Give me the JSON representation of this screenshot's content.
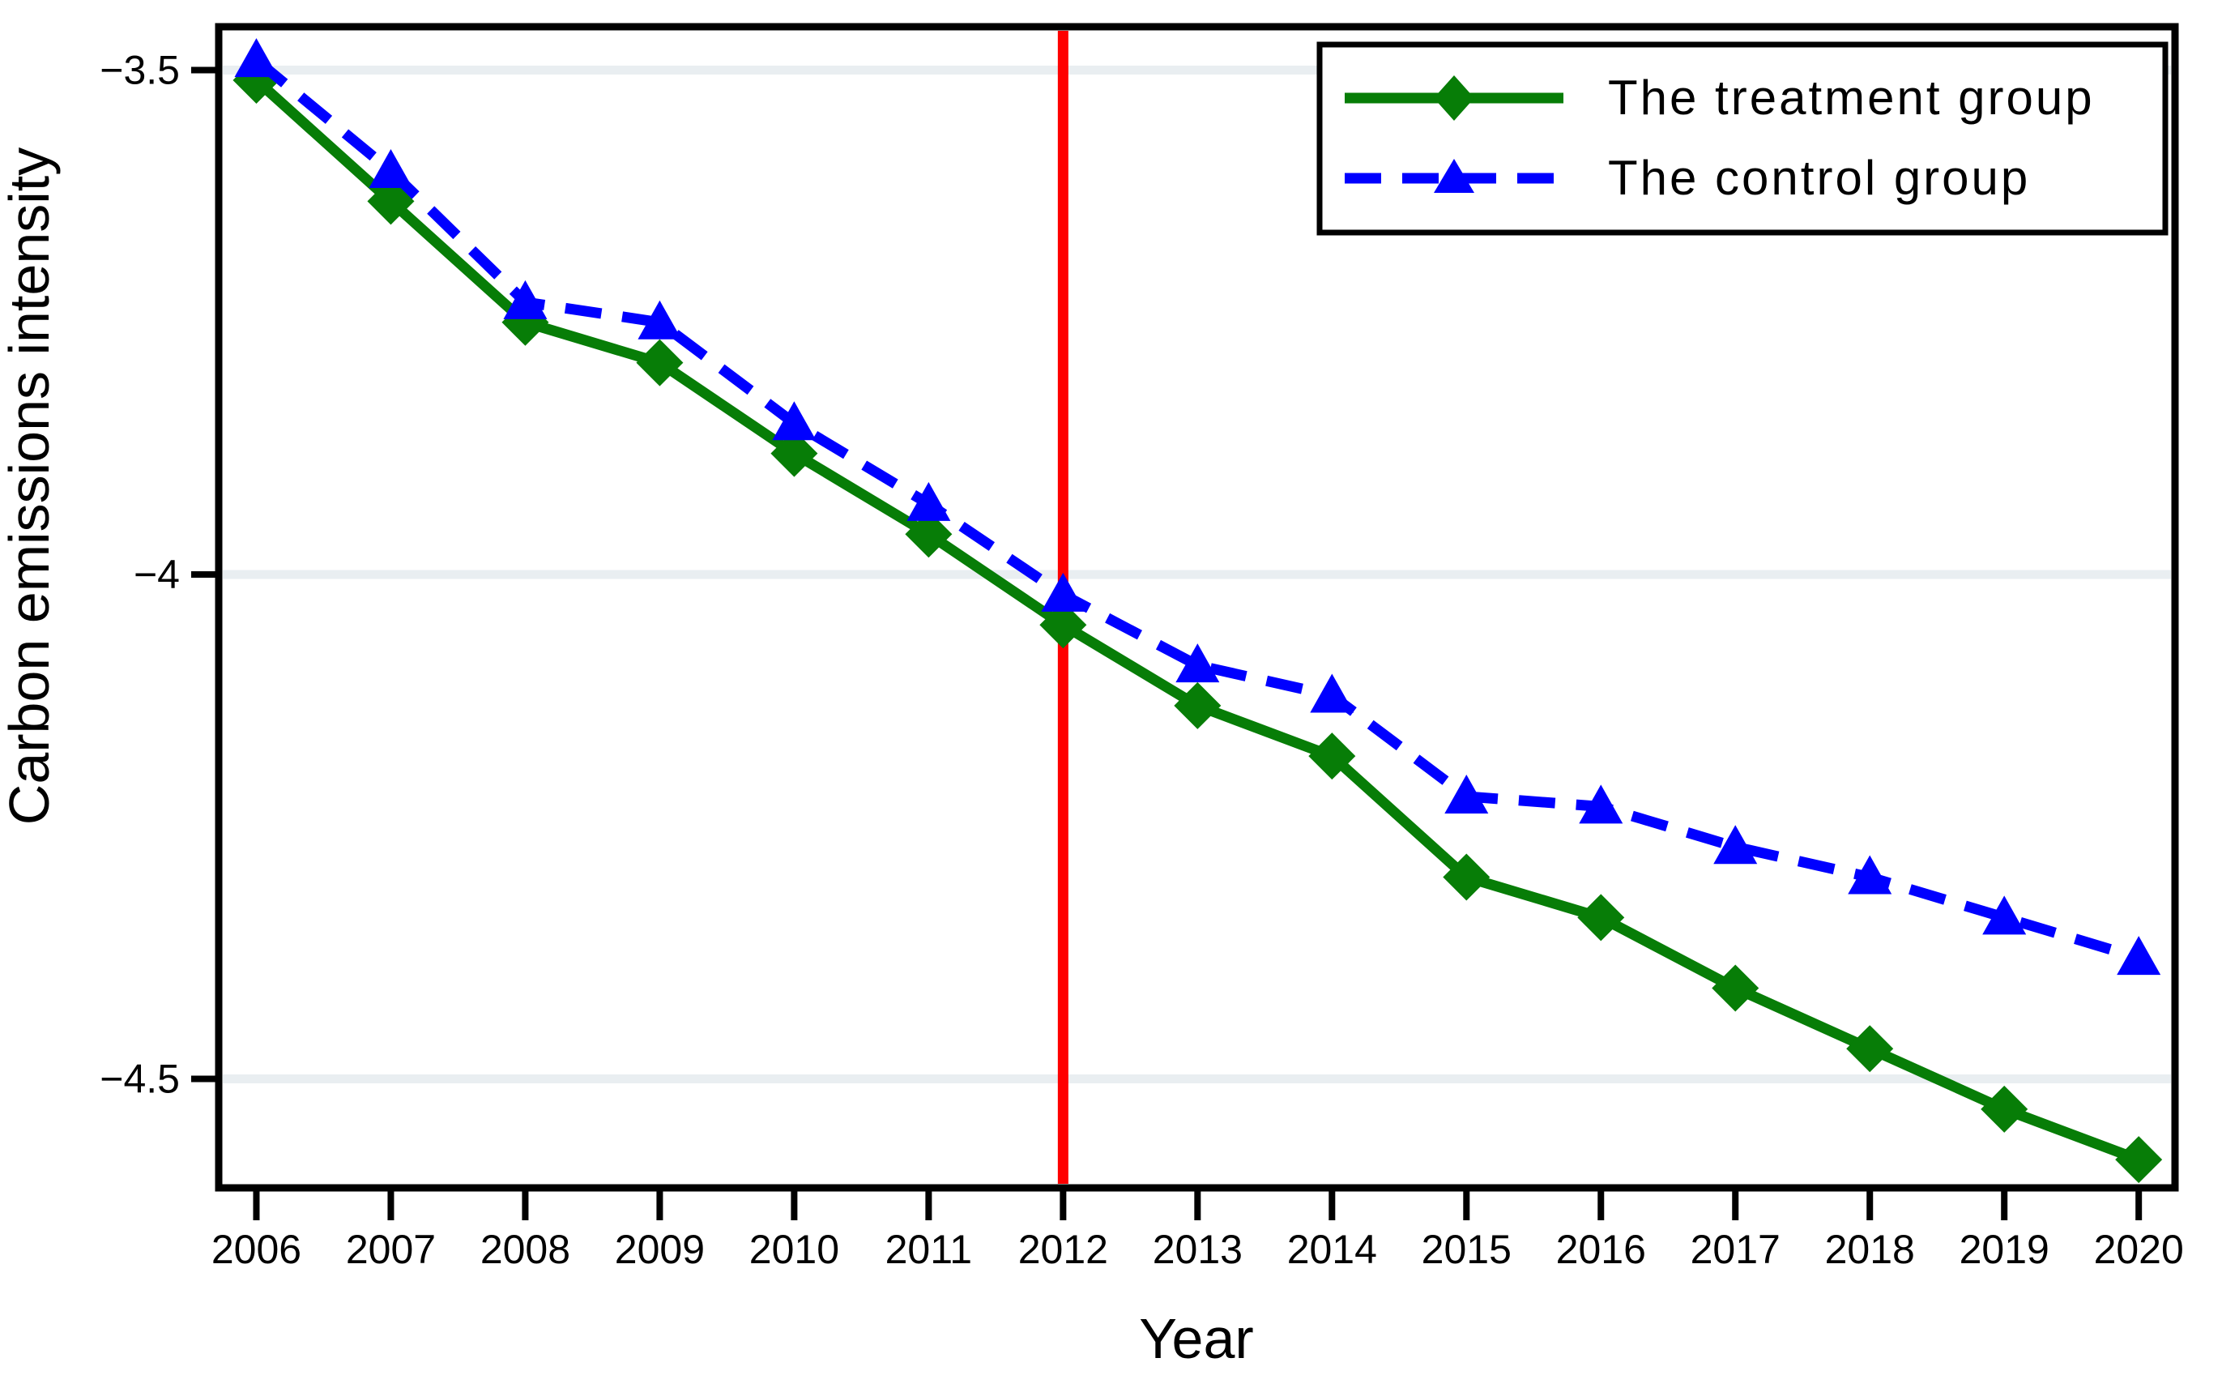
{
  "chart_data": {
    "type": "line",
    "title": "",
    "xlabel": "Year",
    "ylabel": "Carbon emissions intensity",
    "x": [
      2006,
      2007,
      2008,
      2009,
      2010,
      2011,
      2012,
      2013,
      2014,
      2015,
      2016,
      2017,
      2018,
      2019,
      2020
    ],
    "x_tick_labels": [
      "2006",
      "2007",
      "2008",
      "2009",
      "2010",
      "2011",
      "2012",
      "2013",
      "2014",
      "2015",
      "2016",
      "2017",
      "2018",
      "2019",
      "2020"
    ],
    "xlim": [
      2005.72,
      2020.27
    ],
    "ylim": [
      -4.608,
      -3.457
    ],
    "y_ticks": [
      -3.5,
      -4,
      -4.5
    ],
    "y_tick_labels": [
      "−3.5",
      "−4",
      "−4.5"
    ],
    "grid": true,
    "gridline_color": "#e9eef1",
    "axis_color": "#000000",
    "background_color": "#ffffff",
    "legend_position": "top-right-inside",
    "reference_line": {
      "orientation": "vertical",
      "x": 2012,
      "color": "#ff0000"
    },
    "series": [
      {
        "name": "The treatment group",
        "color": "#077d07",
        "line_style": "solid",
        "marker": "diamond",
        "values": [
          -3.51,
          -3.63,
          -3.75,
          -3.79,
          -3.88,
          -3.96,
          -4.05,
          -4.13,
          -4.18,
          -4.3,
          -4.34,
          -4.41,
          -4.47,
          -4.53,
          -4.58
        ]
      },
      {
        "name": "The control group",
        "color": "#0000ff",
        "line_style": "dashed",
        "marker": "triangle",
        "values": [
          -3.49,
          -3.6,
          -3.73,
          -3.75,
          -3.85,
          -3.93,
          -4.02,
          -4.09,
          -4.12,
          -4.22,
          -4.23,
          -4.27,
          -4.3,
          -4.34,
          -4.38
        ]
      }
    ]
  }
}
